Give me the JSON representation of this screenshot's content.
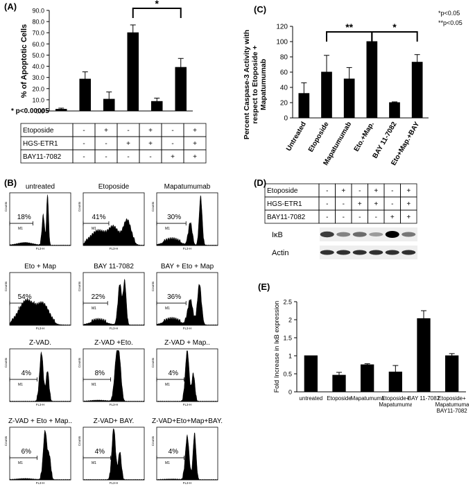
{
  "chart_data": [
    {
      "type": "bar",
      "panel_label": "(A)",
      "ylabel": "% of Apoptotic Cells",
      "categories": [
        null,
        null,
        null,
        null,
        null,
        null
      ],
      "values": [
        1.5,
        28.5,
        10.5,
        70,
        8.5,
        39
      ],
      "errors": [
        1,
        6.5,
        6.5,
        7,
        3,
        8
      ],
      "color": "#000000",
      "ylim": [
        0,
        90
      ],
      "yticks": [
        {
          "value": 0,
          "label": "0.0"
        },
        {
          "value": 10,
          "label": "10.0"
        },
        {
          "value": 20,
          "label": "20.0"
        },
        {
          "value": 30,
          "label": "30.0"
        },
        {
          "value": 40,
          "label": "40.0"
        },
        {
          "value": 50,
          "label": "50.0"
        },
        {
          "value": 60,
          "label": "60.0"
        },
        {
          "value": 70,
          "label": "70.0"
        },
        {
          "value": 80,
          "label": "80.0"
        },
        {
          "value": 90,
          "label": "90.0"
        }
      ],
      "annotations": [
        "* p<0.00005"
      ],
      "significance": [
        "*"
      ]
    },
    {
      "type": "bar",
      "panel_label": "(C)",
      "ylabel": "Percent Caspase-3 Activity with respect to Etoposide + Mapatumumab",
      "categories": [
        "Untreated",
        "Etoposide",
        "Mapatumumab",
        "Eto.+Map.",
        "BAY 11-7082",
        "Eto+Map.+BAY"
      ],
      "values": [
        32,
        60,
        51,
        100,
        20,
        73
      ],
      "errors": [
        14,
        22,
        15,
        0,
        1,
        10
      ],
      "color": "#000000",
      "ylim": [
        0,
        120
      ],
      "yticks": [
        0,
        20,
        40,
        60,
        80,
        100,
        120
      ],
      "annotations": [
        "*p<0.05",
        "**p<0.05"
      ],
      "significance": [
        "**",
        "*"
      ]
    },
    {
      "type": "bar",
      "panel_label": "(E)",
      "ylabel": "Fold Increase in IκB expression",
      "categories": [
        "untreated",
        "Etoposide",
        "Mapatumumab",
        "Etoposide+ Mapatumumab",
        "BAY 11-7082",
        "Etoposide+ Mapatumumab+ BAY11-7082"
      ],
      "values": [
        1,
        0.46,
        0.75,
        0.55,
        2.03,
        1.0
      ],
      "errors": [
        0,
        0.08,
        0.03,
        0.18,
        0.22,
        0.06
      ],
      "color": "#000000",
      "ylim": [
        0,
        2.5
      ],
      "yticks": [
        0,
        0.5,
        1,
        1.5,
        2,
        2.5
      ]
    }
  ],
  "panel_a_table": {
    "rows": [
      [
        "Etoposide",
        "-",
        "+",
        "-",
        "+",
        "-",
        "+"
      ],
      [
        "HGS-ETR1",
        "-",
        "-",
        "+",
        "+",
        "-",
        "+"
      ],
      [
        "BAY11-7082",
        "-",
        "-",
        "-",
        "-",
        "+",
        "+"
      ]
    ]
  },
  "panel_b": {
    "label": "(B)",
    "counts_label": "Counts",
    "x_label": "FL3-H",
    "gate_label": "M1",
    "histograms": [
      {
        "title": "untreated",
        "percent": "18%"
      },
      {
        "title": "Etoposide",
        "percent": "41%"
      },
      {
        "title": "Mapatumumab",
        "percent": "30%"
      },
      {
        "title": "Eto + Map",
        "percent": "54%"
      },
      {
        "title": "BAY 11-7082",
        "percent": "22%"
      },
      {
        "title": "BAY + Eto + Map",
        "percent": "36%"
      },
      {
        "title": "Z-VAD.",
        "percent": "4%"
      },
      {
        "title": "Z-VAD +Eto.",
        "percent": "8%"
      },
      {
        "title": "Z-VAD + Map..",
        "percent": "4%"
      },
      {
        "title": "Z-VAD + Eto + Map..",
        "percent": "6%"
      },
      {
        "title": "Z-VAD+ BAY.",
        "percent": "4%"
      },
      {
        "title": "Z-VAD+Eto+Map+BAY.",
        "percent": "4%"
      }
    ]
  },
  "panel_d": {
    "label": "(D)",
    "table": {
      "rows": [
        [
          "Etoposide",
          "-",
          "+",
          "-",
          "+",
          "-",
          "+"
        ],
        [
          "HGS-ETR1",
          "-",
          "-",
          "+",
          "+",
          "-",
          "+"
        ],
        [
          "BAY11-7082",
          "-",
          "-",
          "-",
          "-",
          "+",
          "+"
        ]
      ]
    },
    "blots": [
      "IκB",
      "Actin"
    ]
  }
}
